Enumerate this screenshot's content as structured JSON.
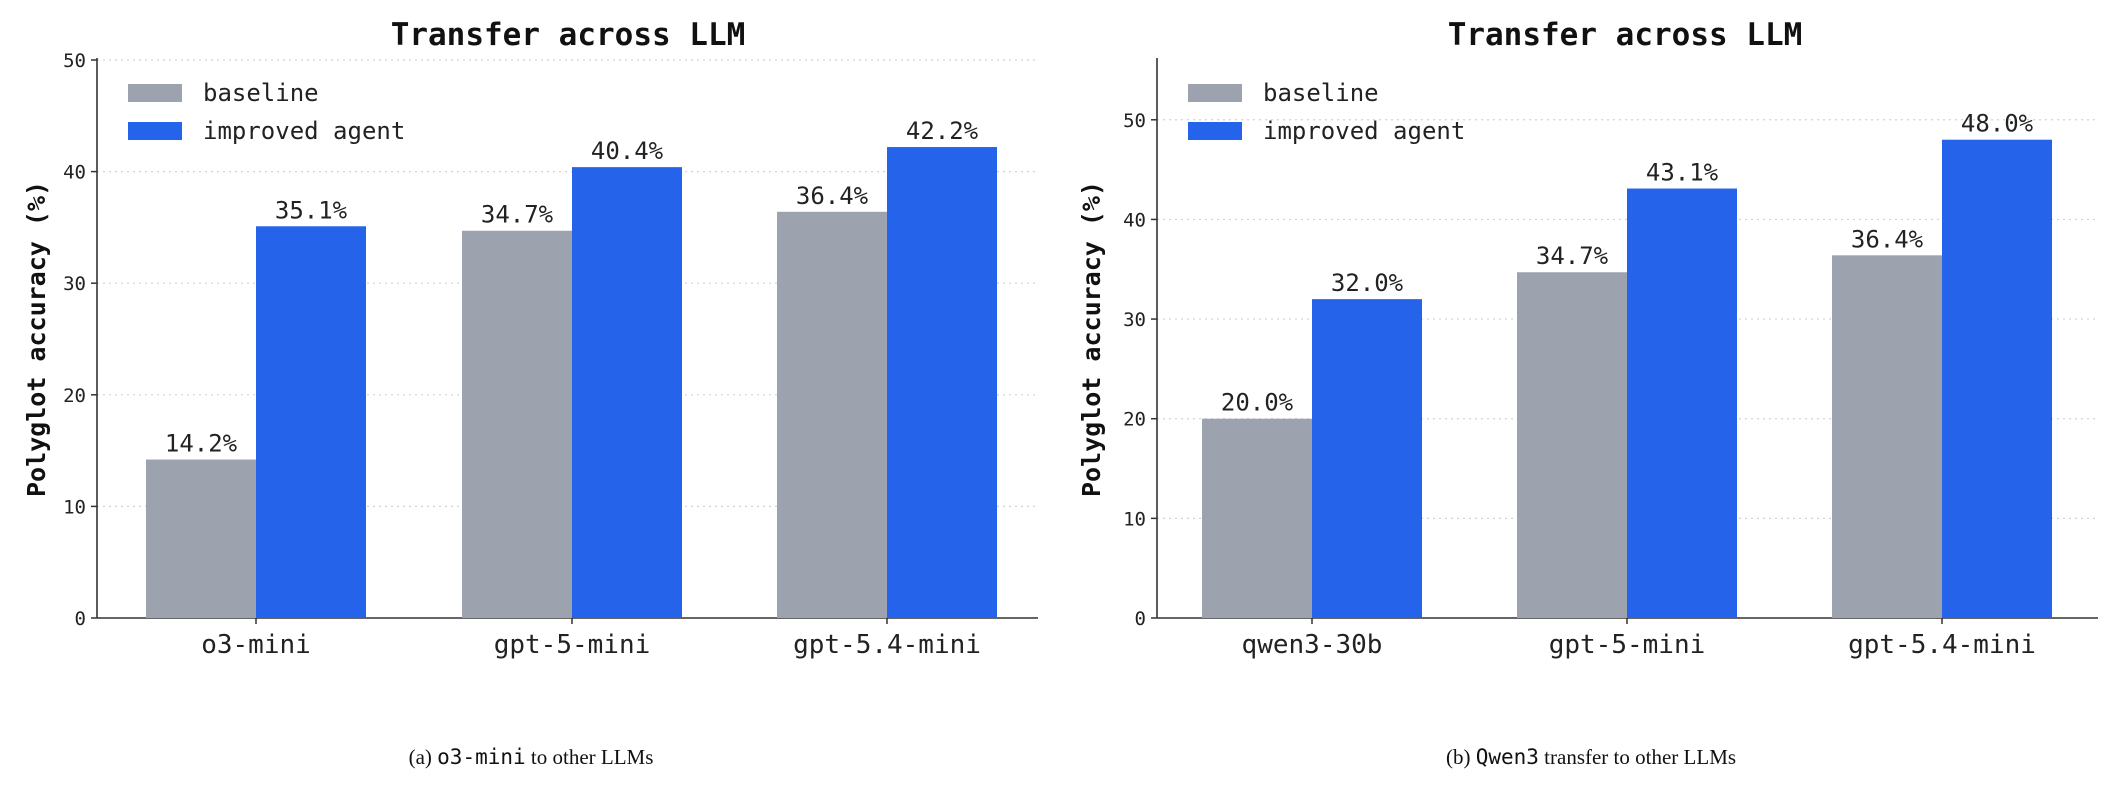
{
  "chart_data": [
    {
      "type": "bar",
      "title": "Transfer across LLM",
      "ylabel": "Polyglot accuracy (%)",
      "xlabel": "",
      "ylim": [
        0,
        50
      ],
      "yticks": [
        0,
        10,
        20,
        30,
        40,
        50
      ],
      "grid": true,
      "legend_position": "top-left",
      "categories": [
        "o3-mini",
        "gpt-5-mini",
        "gpt-5.4-mini"
      ],
      "series": [
        {
          "name": "baseline",
          "color": "#9ca3af",
          "values": [
            14.2,
            34.7,
            36.4
          ],
          "labels": [
            "14.2%",
            "34.7%",
            "36.4%"
          ]
        },
        {
          "name": "improved agent",
          "color": "#2563eb",
          "values": [
            35.1,
            40.4,
            42.2
          ],
          "labels": [
            "35.1%",
            "40.4%",
            "42.2%"
          ]
        }
      ],
      "caption": {
        "prefix": "(a) ",
        "code": "o3-mini",
        "suffix": " to other LLMs"
      }
    },
    {
      "type": "bar",
      "title": "Transfer across LLM",
      "ylabel": "Polyglot accuracy (%)",
      "xlabel": "",
      "ylim": [
        0,
        56
      ],
      "yticks": [
        0,
        10,
        20,
        30,
        40,
        50
      ],
      "grid": true,
      "legend_position": "top-left",
      "categories": [
        "qwen3-30b",
        "gpt-5-mini",
        "gpt-5.4-mini"
      ],
      "series": [
        {
          "name": "baseline",
          "color": "#9ca3af",
          "values": [
            20.0,
            34.7,
            36.4
          ],
          "labels": [
            "20.0%",
            "34.7%",
            "36.4%"
          ]
        },
        {
          "name": "improved agent",
          "color": "#2563eb",
          "values": [
            32.0,
            43.1,
            48.0
          ],
          "labels": [
            "32.0%",
            "43.1%",
            "48.0%"
          ]
        }
      ],
      "caption": {
        "prefix": "(b) ",
        "code": "Qwen3",
        "suffix": " transfer to other LLMs"
      }
    }
  ]
}
